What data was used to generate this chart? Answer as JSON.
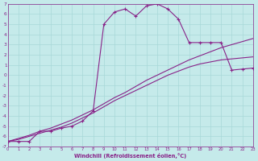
{
  "xlabel": "Windchill (Refroidissement éolien,°C)",
  "background_color": "#c5eaea",
  "grid_color": "#a8d8d8",
  "line_color": "#882288",
  "xlim": [
    0,
    23
  ],
  "ylim": [
    -7,
    7
  ],
  "xtick_vals": [
    0,
    1,
    2,
    3,
    4,
    5,
    6,
    7,
    8,
    9,
    10,
    11,
    12,
    13,
    14,
    15,
    16,
    17,
    18,
    19,
    20,
    21,
    22,
    23
  ],
  "ytick_vals": [
    -7,
    -6,
    -5,
    -4,
    -3,
    -2,
    -1,
    0,
    1,
    2,
    3,
    4,
    5,
    6,
    7
  ],
  "line1_x": [
    0,
    1,
    2,
    3,
    4,
    5,
    6,
    7,
    8,
    9,
    10,
    11,
    12,
    13,
    14,
    15,
    16,
    17,
    18,
    19,
    20,
    21,
    22,
    23
  ],
  "line1_y": [
    -6.5,
    -6.5,
    -6.5,
    -5.5,
    -5.5,
    -5.2,
    -5.0,
    -4.5,
    -3.5,
    5.0,
    6.2,
    6.5,
    5.8,
    6.8,
    7.0,
    6.5,
    5.5,
    3.2,
    3.2,
    3.2,
    3.2,
    0.5,
    0.6,
    0.7
  ],
  "line2_x": [
    0,
    1,
    2,
    3,
    4,
    5,
    6,
    7,
    8,
    9,
    10,
    11,
    12,
    13,
    14,
    15,
    16,
    17,
    18,
    19,
    20,
    21,
    22,
    23
  ],
  "line2_y": [
    -6.5,
    -6.3,
    -6.0,
    -5.7,
    -5.4,
    -5.1,
    -4.7,
    -4.2,
    -3.7,
    -3.1,
    -2.5,
    -2.0,
    -1.5,
    -1.0,
    -0.5,
    0.0,
    0.4,
    0.8,
    1.1,
    1.3,
    1.5,
    1.6,
    1.7,
    1.8
  ],
  "line3_x": [
    0,
    1,
    2,
    3,
    4,
    5,
    6,
    7,
    8,
    9,
    10,
    11,
    12,
    13,
    14,
    15,
    16,
    17,
    18,
    19,
    20,
    21,
    22,
    23
  ],
  "line3_y": [
    -6.5,
    -6.2,
    -5.9,
    -5.5,
    -5.2,
    -4.8,
    -4.4,
    -3.9,
    -3.4,
    -2.8,
    -2.2,
    -1.7,
    -1.1,
    -0.5,
    0.0,
    0.5,
    1.0,
    1.5,
    1.9,
    2.3,
    2.7,
    3.0,
    3.3,
    3.6
  ]
}
